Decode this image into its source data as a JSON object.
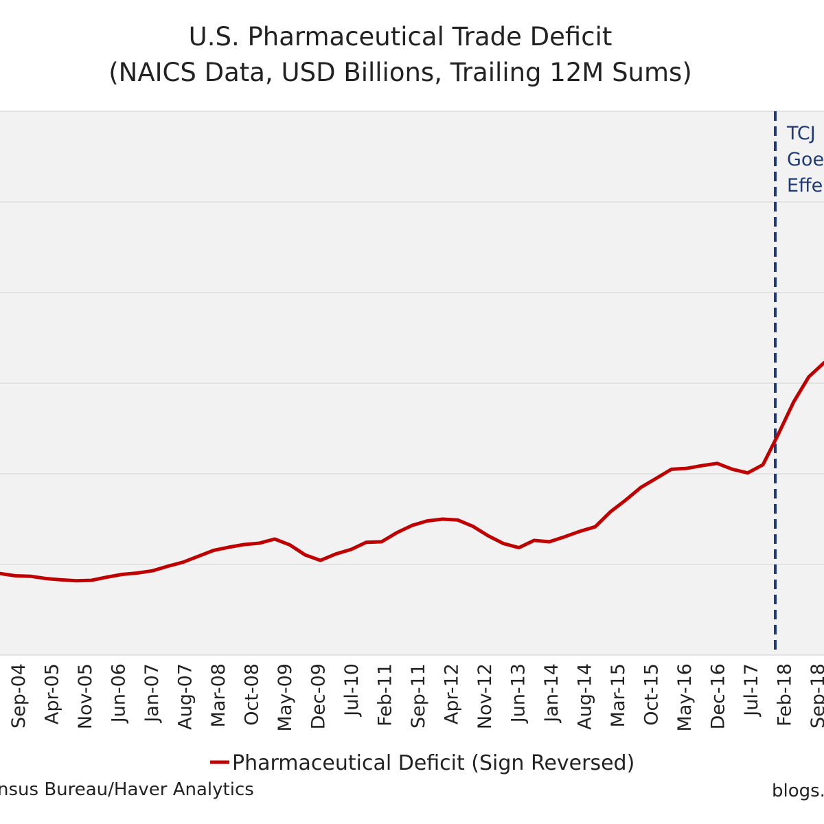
{
  "chart_data": {
    "type": "line",
    "title": "U.S. Pharmaceutical Trade Deficit",
    "subtitle": "(NAICS Data, USD Billions, Trailing 12M Sums)",
    "x_tick_labels": [
      "Sep-04",
      "Apr-05",
      "Nov-05",
      "Jun-06",
      "Jan-07",
      "Aug-07",
      "Mar-08",
      "Oct-08",
      "May-09",
      "Dec-09",
      "Jul-10",
      "Feb-11",
      "Sep-11",
      "Apr-12",
      "Nov-12",
      "Jun-13",
      "Jan-14",
      "Aug-14",
      "Mar-15",
      "Oct-15",
      "May-16",
      "Dec-16",
      "Jul-17",
      "Feb-18",
      "Sep-18"
    ],
    "grid": true,
    "legend_position": "bottom-center",
    "series": [
      {
        "name": "Pharmaceutical Deficit (Sign Reversed)",
        "color": "#c00000",
        "values": [
          3.0,
          2.5,
          2.4,
          1.9,
          1.6,
          1.4,
          1.5,
          2.2,
          2.8,
          3.1,
          3.6,
          4.6,
          5.5,
          6.8,
          8.1,
          8.8,
          9.4,
          9.7,
          10.6,
          9.3,
          7.1,
          5.9,
          7.3,
          8.3,
          9.9,
          10.0,
          12.0,
          13.6,
          14.6,
          15.0,
          14.8,
          13.4,
          11.3,
          9.6,
          8.7,
          10.3,
          10.0,
          11.1,
          12.3,
          13.3,
          16.6,
          19.2,
          22.0,
          24.0,
          26.0,
          26.2,
          26.8,
          27.3,
          26.0,
          25.2,
          27.0,
          33.7,
          40.8,
          46.4,
          49.5
        ]
      }
    ],
    "annotations": [
      {
        "x": "Jan-18",
        "style": "dashed-vertical",
        "color": "#1f3a7a",
        "text_lines": [
          "TCJ",
          "Goe",
          "Effe"
        ]
      }
    ]
  },
  "footer": {
    "source": "nsus Bureau/Haver Analytics",
    "site": "blogs."
  }
}
